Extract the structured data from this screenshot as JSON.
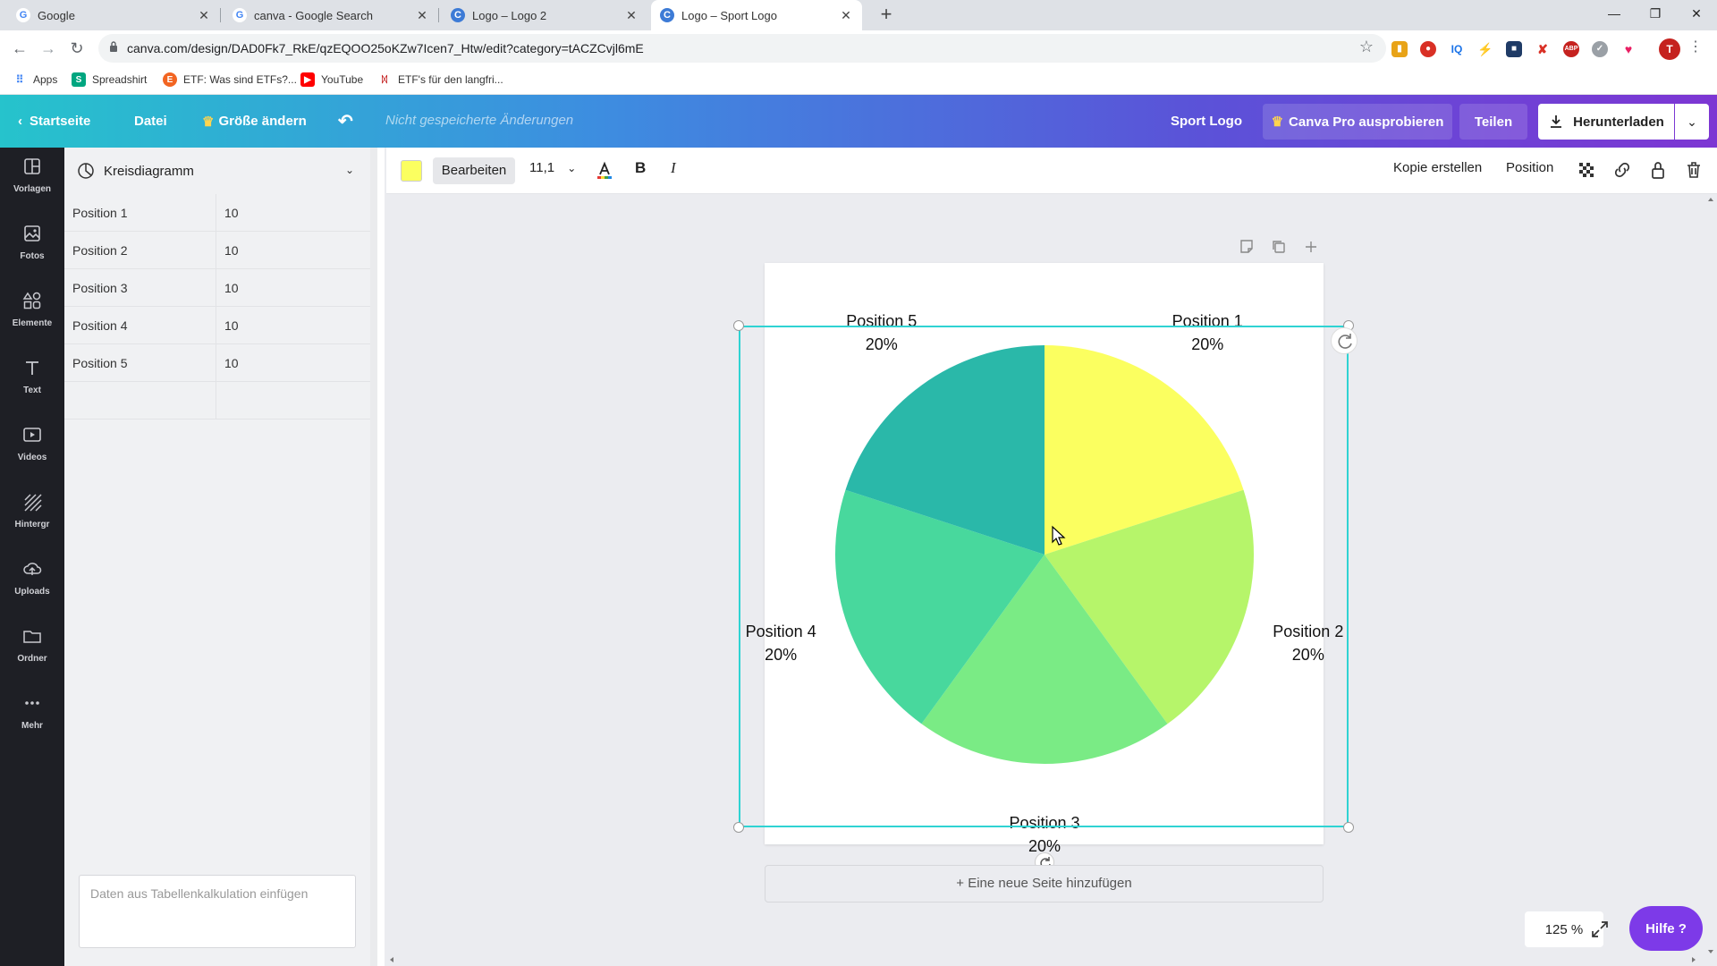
{
  "browser": {
    "tabs": [
      {
        "title": "Google",
        "active": false
      },
      {
        "title": "canva - Google Search",
        "active": false
      },
      {
        "title": "Logo – Logo 2",
        "active": false
      },
      {
        "title": "Logo – Sport Logo",
        "active": true
      }
    ],
    "url": "canva.com/design/DAD0Fk7_RkE/qzEQOO25oKZw7Icen7_Htw/edit?category=tACZCvjl6mE",
    "profile_initial": "T",
    "bookmarks": [
      "Apps",
      "Spreadshirt",
      "ETF: Was sind ETFs?...",
      "YouTube",
      "ETF's für den langfri..."
    ]
  },
  "header": {
    "home": "Startseite",
    "file": "Datei",
    "resize": "Größe ändern",
    "unsaved": "Nicht gespeicherte Änderungen",
    "design_title": "Sport Logo",
    "pro": "Canva Pro ausprobieren",
    "share": "Teilen",
    "download": "Herunterladen"
  },
  "rail": [
    "Vorlagen",
    "Fotos",
    "Elemente",
    "Text",
    "Videos",
    "Hintergr",
    "Uploads",
    "Ordner",
    "Mehr"
  ],
  "panel": {
    "chart_type": "Kreisdiagramm",
    "rows": [
      {
        "label": "Position 1",
        "value": "10"
      },
      {
        "label": "Position 2",
        "value": "10"
      },
      {
        "label": "Position 3",
        "value": "10"
      },
      {
        "label": "Position 4",
        "value": "10"
      },
      {
        "label": "Position 5",
        "value": "10"
      }
    ],
    "paste_placeholder": "Daten aus Tabellenkalkulation einfügen"
  },
  "editor_toolbar": {
    "edit": "Bearbeiten",
    "font_size": "11,1",
    "bold": "B",
    "italic": "I",
    "copy": "Kopie erstellen",
    "position": "Position"
  },
  "colors": {
    "selected_swatch": "#fbff60",
    "accent": "#2fd3d3",
    "help": "#7d3ae8"
  },
  "add_page": "+ Eine neue Seite hinzufügen",
  "zoom": "125 %",
  "help": "Hilfe ?",
  "chart_data": {
    "type": "pie",
    "categories": [
      "Position 1",
      "Position 2",
      "Position 3",
      "Position 4",
      "Position 5"
    ],
    "values": [
      10,
      10,
      10,
      10,
      10
    ],
    "percent_labels": [
      "20%",
      "20%",
      "20%",
      "20%",
      "20%"
    ],
    "colors": [
      "#fbff60",
      "#b6f56a",
      "#7aeb85",
      "#48d89d",
      "#2ab8a9"
    ]
  }
}
